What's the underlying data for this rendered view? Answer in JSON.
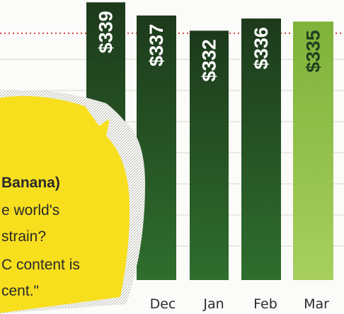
{
  "chart_data": {
    "type": "bar",
    "categories": [
      "",
      "Dec",
      "Jan",
      "Feb",
      "Mar"
    ],
    "values": [
      339,
      337,
      332,
      336,
      335
    ],
    "data_labels": [
      "$339",
      "$337",
      "$332",
      "$336",
      "$335"
    ],
    "highlight_index": 4,
    "colors": {
      "bar_top": "#1d3a1c",
      "bar_bottom": "#2f6e2d",
      "highlight_top": "#7fb23a",
      "highlight_bottom": "#a7cf5f",
      "reference_line": "#d8433b",
      "gridline": "#d6d6cf",
      "bubble": "#f7df1e"
    },
    "title": "",
    "xlabel": "",
    "ylabel": ""
  },
  "callout": {
    "lines": [
      "Banana)",
      "e world's",
      "strain?",
      "C content is",
      "cent.\""
    ]
  }
}
